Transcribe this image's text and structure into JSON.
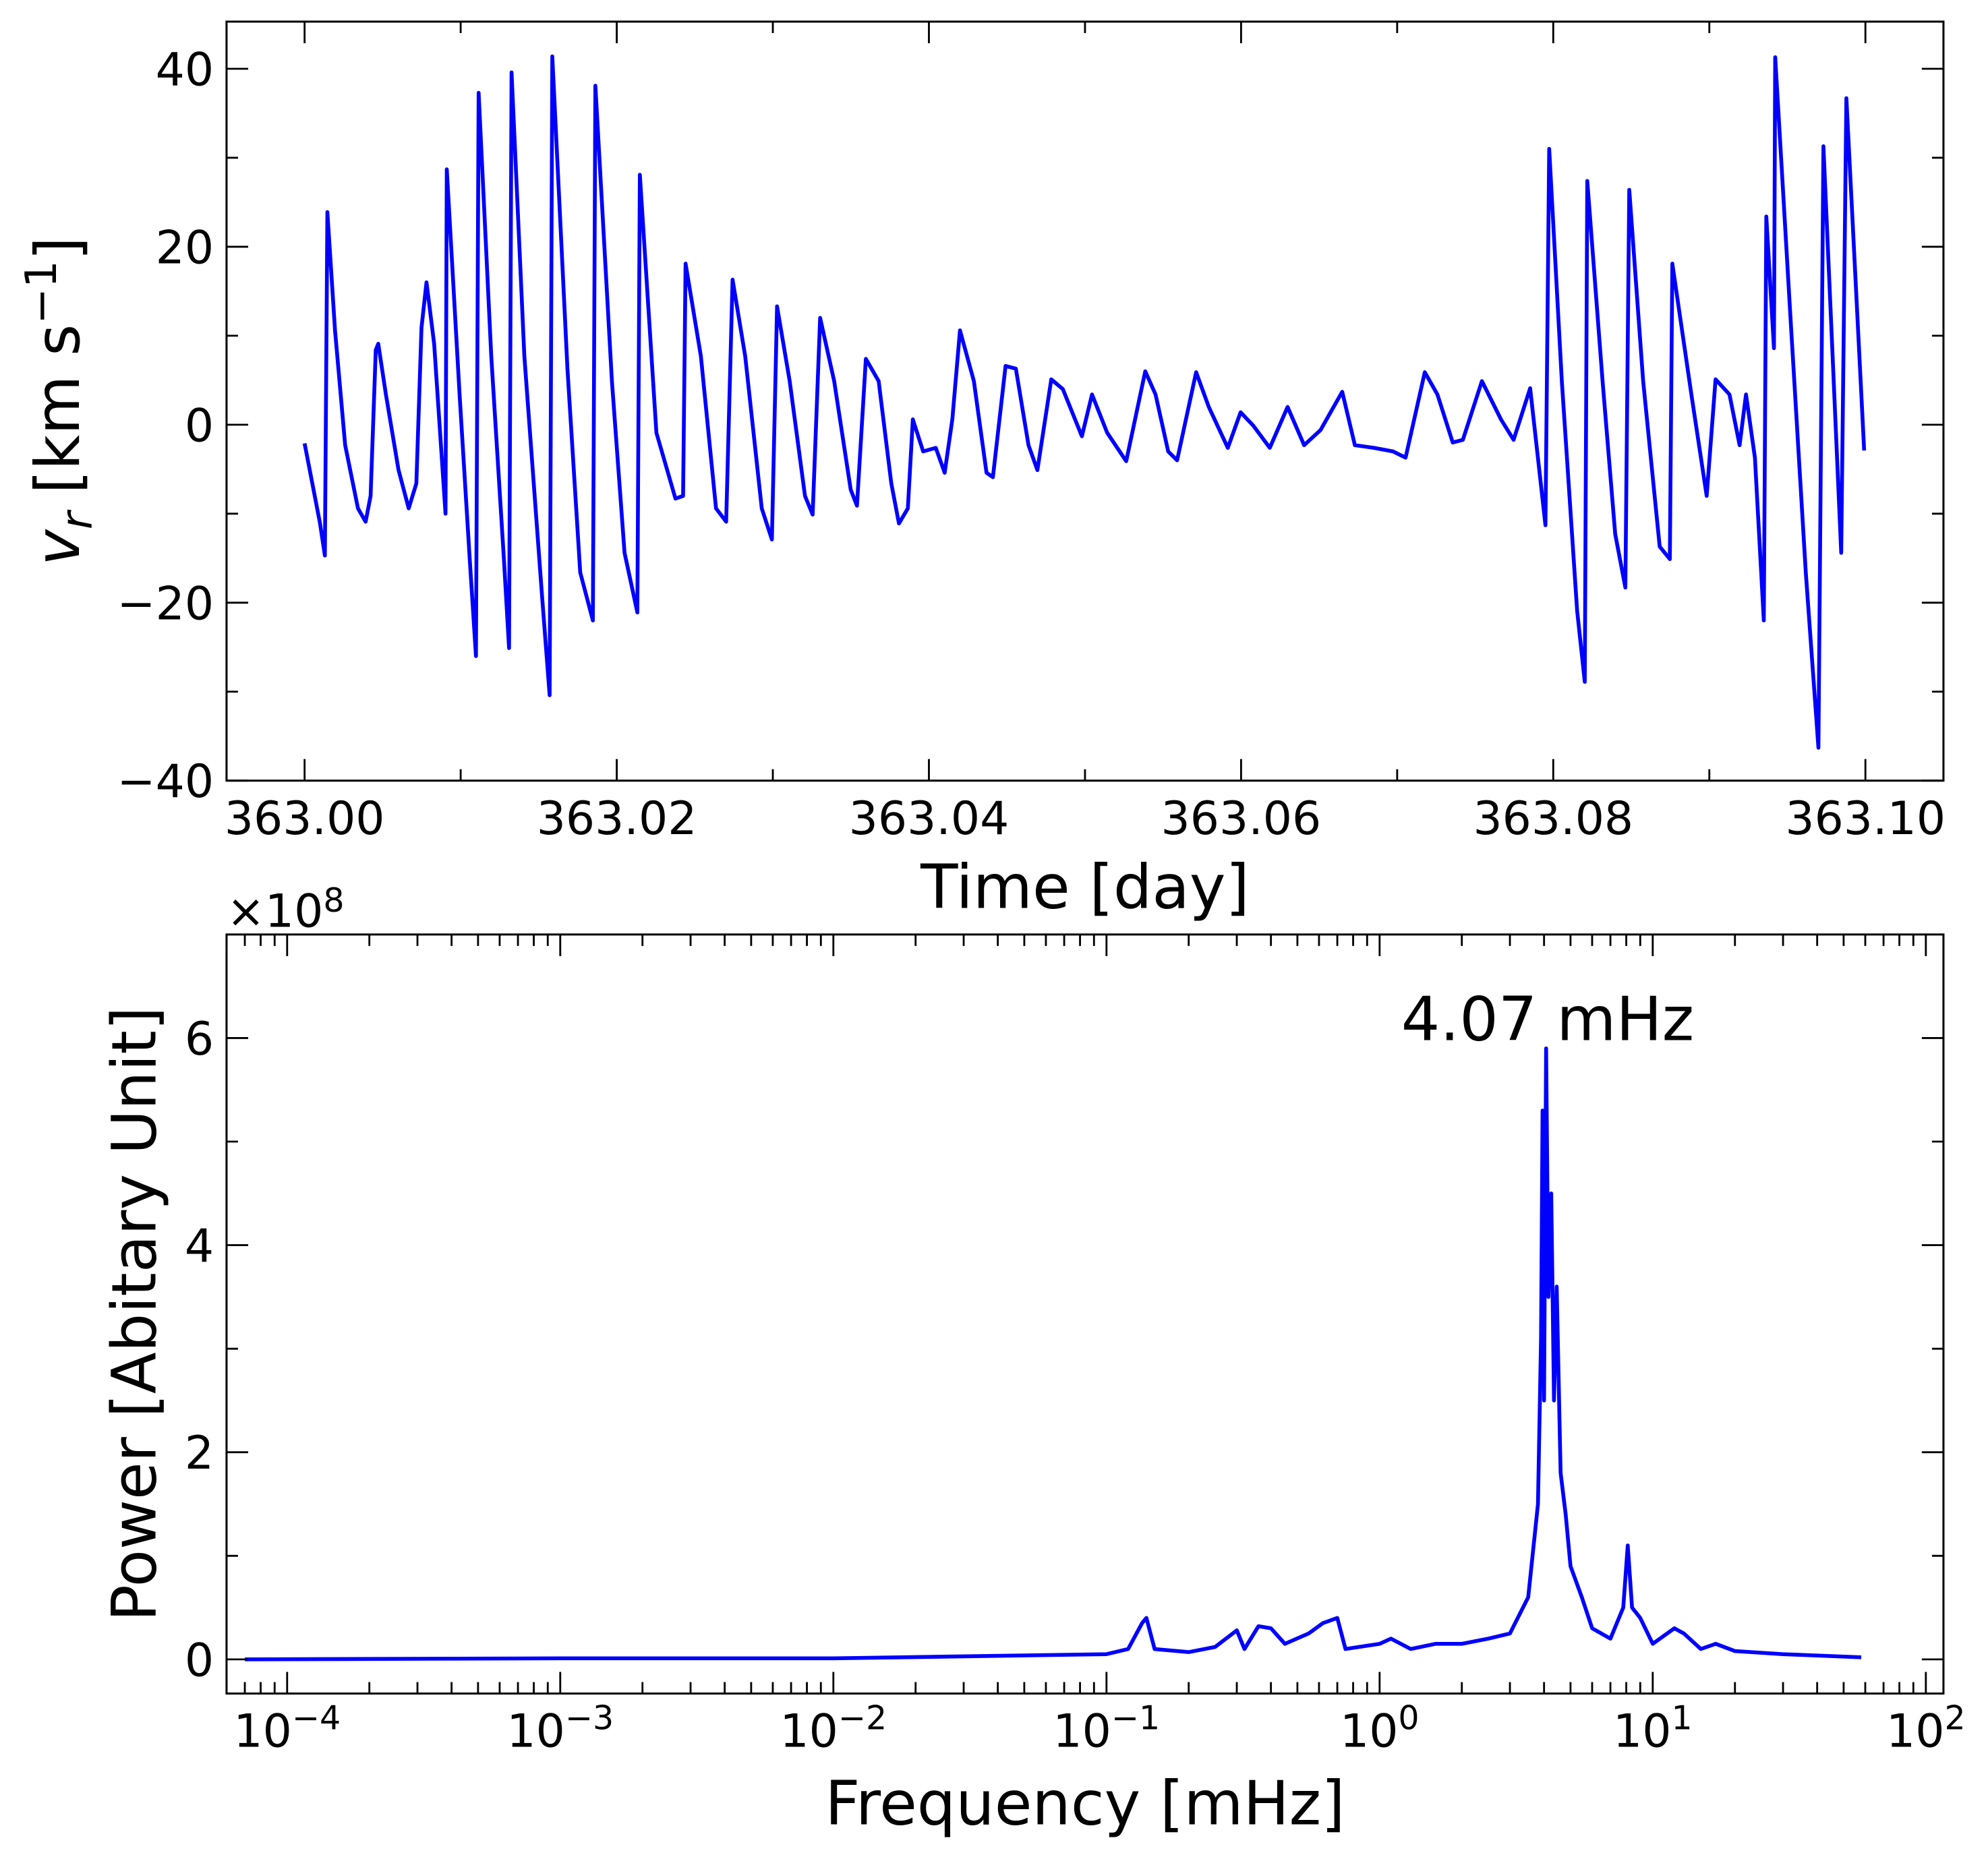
{
  "chart_data": [
    {
      "type": "line",
      "xlabel": "Time [day]",
      "ylabel": {
        "symbol": "v",
        "sub": "r",
        "unit": "[km s",
        "sup": "−1",
        "close": "]"
      },
      "xlim": [
        362.995,
        363.105
      ],
      "ylim": [
        -40,
        45.3
      ],
      "xticks": [
        {
          "value": 363.0,
          "label": "363.00"
        },
        {
          "value": 363.02,
          "label": "363.02"
        },
        {
          "value": 363.04,
          "label": "363.04"
        },
        {
          "value": 363.06,
          "label": "363.06"
        },
        {
          "value": 363.08,
          "label": "363.08"
        },
        {
          "value": 363.1,
          "label": "363.10"
        }
      ],
      "yticks": [
        {
          "value": -40,
          "label": "−40"
        },
        {
          "value": -20,
          "label": "−20"
        },
        0,
        20,
        40
      ],
      "series": [
        {
          "color": "#0000ff",
          "x": [
            363.0,
            363.00098,
            363.0013,
            363.00146,
            363.00195,
            363.0026,
            363.00342,
            363.00391,
            363.00423,
            363.00456,
            363.00472,
            363.00521,
            363.00602,
            363.00667,
            363.00716,
            363.00749,
            363.00781,
            363.0083,
            363.00903,
            363.00911,
            363.00993,
            363.01058,
            363.01098,
            363.01115,
            363.01196,
            363.01277,
            363.0131,
            363.01326,
            363.01408,
            363.01522,
            363.0157,
            363.01587,
            363.01684,
            363.01766,
            363.01847,
            363.01863,
            363.01969,
            363.0205,
            363.02132,
            363.02148,
            363.02254,
            363.02376,
            363.02425,
            363.02441,
            363.02539,
            363.02636,
            363.02701,
            363.02742,
            363.02823,
            363.02929,
            363.02994,
            363.03027,
            363.03108,
            363.03206,
            363.03255,
            363.03303,
            363.03393,
            363.03499,
            363.03539,
            363.03596,
            363.03678,
            363.03759,
            363.03808,
            363.03865,
            363.03897,
            363.03963,
            363.04044,
            363.04101,
            363.0415,
            363.04199,
            363.04288,
            363.04369,
            363.0441,
            363.04491,
            363.04557,
            363.04638,
            363.04695,
            363.04784,
            363.04858,
            363.0498,
            363.05045,
            363.05142,
            363.05264,
            363.05386,
            363.05452,
            363.05533,
            363.0559,
            363.05712,
            363.05793,
            363.05915,
            363.05997,
            363.06078,
            363.06184,
            363.06298,
            363.06404,
            363.06509,
            363.06648,
            363.06729,
            363.06851,
            363.06973,
            363.07054,
            363.07177,
            363.07258,
            363.07356,
            363.07421,
            363.07543,
            363.07665,
            363.07746,
            363.07852,
            363.0795,
            363.07974,
            363.08055,
            363.08153,
            363.08202,
            363.08218,
            363.08316,
            363.08397,
            363.08462,
            363.08487,
            363.08576,
            363.08682,
            363.08747,
            363.08763,
            363.08885,
            363.08983,
            363.0904,
            363.09129,
            363.09194,
            363.09235,
            363.09292,
            363.09349,
            363.09365,
            363.09414,
            363.09422,
            363.0952,
            363.09618,
            363.09699,
            363.09731,
            363.09845,
            363.09878,
            363.09992
          ],
          "values": [
            -2.1,
            -11,
            -14.7,
            23.9,
            10.6,
            -2.3,
            -9.4,
            -10.9,
            -8,
            8.4,
            9.1,
            3.4,
            -5.1,
            -9.4,
            -6.6,
            10.9,
            16,
            9.1,
            -10,
            28.7,
            3.4,
            -15.1,
            -26,
            37.3,
            7.7,
            -15.1,
            -25.1,
            39.6,
            7.7,
            -19.4,
            -30.4,
            41.4,
            6.3,
            -16.6,
            -22,
            38.1,
            4.9,
            -14.4,
            -21.1,
            28.1,
            -0.9,
            -8.3,
            -8,
            18.1,
            7.7,
            -9.4,
            -10.9,
            16.3,
            7.7,
            -9.4,
            -12.9,
            13.3,
            4.9,
            -8,
            -10.1,
            12,
            4.9,
            -7.3,
            -9.1,
            7.4,
            4.9,
            -6.6,
            -11.1,
            -9.4,
            0.6,
            -3,
            -2.6,
            -5.4,
            0.6,
            10.6,
            4.9,
            -5.4,
            -5.9,
            6.6,
            6.3,
            -2.3,
            -5.1,
            5.1,
            4,
            -1.3,
            3.4,
            -0.9,
            -4.1,
            6,
            3.4,
            -3,
            -4,
            5.9,
            2,
            -2.6,
            1.4,
            -0.1,
            -2.6,
            2,
            -2.3,
            -0.6,
            3.7,
            -2.3,
            -2.6,
            -3,
            -3.7,
            5.9,
            3.4,
            -2,
            -1.7,
            4.9,
            0.6,
            -1.7,
            4.1,
            -11.3,
            31,
            4.9,
            -20.9,
            -28.9,
            27.4,
            4.9,
            -12.3,
            -18.3,
            26.4,
            4.9,
            -13.7,
            -15.1,
            18.1,
            3.4,
            -8,
            5.1,
            3.4,
            -2.3,
            3.4,
            -3.7,
            -22,
            23.4,
            8.6,
            41.3,
            12,
            -16.6,
            -36.3,
            31.3,
            -14.4,
            36.7,
            -2.9
          ]
        }
      ]
    },
    {
      "type": "line",
      "log_x": true,
      "xlabel": "Frequency [mHz]",
      "ylabel": "Power [Abitary Unit]",
      "offset_label": "×10",
      "offset_exp": "8",
      "annotation": "4.07 mHz",
      "xlim": [
        6e-05,
        116
      ],
      "ylim": [
        -0.33,
        7
      ],
      "xticks": [
        {
          "value": 0.0001,
          "label": "10",
          "exp": "−4"
        },
        {
          "value": 0.001,
          "label": "10",
          "exp": "−3"
        },
        {
          "value": 0.01,
          "label": "10",
          "exp": "−2"
        },
        {
          "value": 0.1,
          "label": "10",
          "exp": "−1"
        },
        {
          "value": 1,
          "label": "10",
          "exp": "0"
        },
        {
          "value": 10,
          "label": "10",
          "exp": "1"
        },
        {
          "value": 100,
          "label": "10",
          "exp": "2"
        }
      ],
      "yticks": [
        0,
        2,
        4,
        6
      ],
      "series": [
        {
          "color": "#0000ff",
          "x": [
            7e-05,
            0.001,
            0.01,
            0.1,
            0.12,
            0.135,
            0.14,
            0.15,
            0.2,
            0.25,
            0.3,
            0.32,
            0.36,
            0.4,
            0.45,
            0.55,
            0.62,
            0.7,
            0.75,
            1.0,
            1.1,
            1.3,
            1.6,
            2.0,
            2.5,
            3.0,
            3.5,
            3.8,
            3.9,
            3.95,
            4.0,
            4.07,
            4.15,
            4.25,
            4.35,
            4.45,
            4.6,
            4.8,
            5.0,
            5.5,
            6,
            7,
            7.8,
            8.1,
            8.4,
            9,
            10,
            12,
            13,
            15,
            17,
            20,
            30,
            58
          ],
          "values": [
            0,
            0.01,
            0.01,
            0.05,
            0.1,
            0.35,
            0.4,
            0.1,
            0.07,
            0.12,
            0.28,
            0.1,
            0.32,
            0.3,
            0.15,
            0.25,
            0.35,
            0.4,
            0.1,
            0.15,
            0.2,
            0.1,
            0.15,
            0.15,
            0.2,
            0.25,
            0.6,
            1.5,
            3.1,
            5.3,
            2.5,
            5.9,
            3.5,
            4.5,
            2.5,
            3.6,
            1.8,
            1.4,
            0.9,
            0.6,
            0.3,
            0.2,
            0.5,
            1.1,
            0.5,
            0.4,
            0.15,
            0.3,
            0.25,
            0.1,
            0.15,
            0.08,
            0.05,
            0.02
          ]
        }
      ]
    }
  ]
}
